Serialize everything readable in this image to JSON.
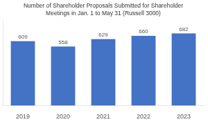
{
  "chart_data": {
    "type": "bar",
    "title": "Number of Shareholder Proposals Submitted for Shareholder\nMeetings in Jan. 1 to May 31 (Russell 3000)",
    "categories": [
      "2019",
      "2020",
      "2021",
      "2022",
      "2023"
    ],
    "values": [
      609,
      558,
      629,
      660,
      682
    ],
    "color": "#4472C4",
    "ylim": [
      0,
      800
    ],
    "data_labels": true,
    "tick_labels": "x",
    "grid": false
  }
}
